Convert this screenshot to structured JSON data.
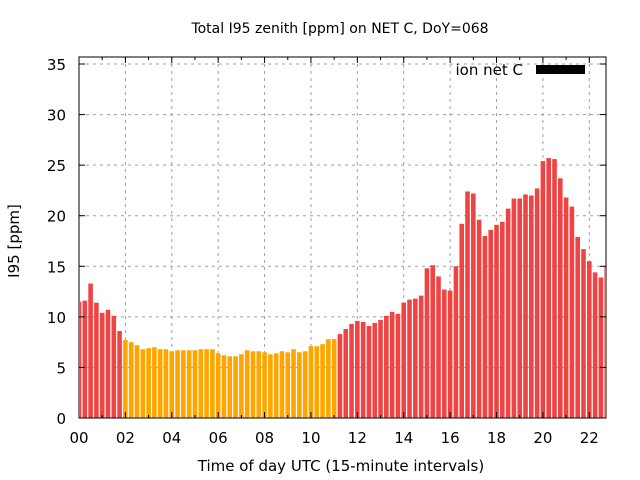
{
  "chart_data": {
    "type": "bar",
    "title": "Total I95 zenith [ppm] on NET C, DoY=068",
    "xlabel": "Time of day UTC (15-minute intervals)",
    "ylabel": "I95 [ppm]",
    "ylim": [
      0,
      36
    ],
    "yticks": [
      0,
      5,
      10,
      15,
      20,
      25,
      30,
      35
    ],
    "ytick_labels": [
      "0",
      "5",
      "10",
      "15",
      "20",
      "25",
      "30",
      "35"
    ],
    "xlim_hours": [
      0,
      22.75
    ],
    "xticks_hours": [
      0,
      2,
      4,
      6,
      8,
      10,
      12,
      14,
      16,
      18,
      20,
      22
    ],
    "xtick_labels": [
      "00",
      "02",
      "04",
      "06",
      "08",
      "10",
      "12",
      "14",
      "16",
      "18",
      "20",
      "22"
    ],
    "grid": true,
    "legend": {
      "label": "ion net C",
      "color": "#000000",
      "placement": "top-right"
    },
    "interval_hours": 0.25,
    "colors": {
      "default": "#ef4444",
      "highlight": "#ffa500"
    },
    "highlight_range_index": [
      8,
      44
    ],
    "values": [
      11.5,
      11.6,
      13.3,
      11.4,
      10.4,
      10.7,
      10.1,
      8.6,
      7.7,
      7.5,
      7.2,
      6.8,
      6.9,
      7.0,
      6.8,
      6.8,
      6.6,
      6.7,
      6.7,
      6.7,
      6.7,
      6.8,
      6.8,
      6.8,
      6.4,
      6.2,
      6.1,
      6.1,
      6.3,
      6.7,
      6.6,
      6.6,
      6.5,
      6.3,
      6.4,
      6.6,
      6.5,
      6.8,
      6.5,
      6.6,
      7.1,
      7.1,
      7.3,
      7.8,
      7.8,
      8.3,
      8.8,
      9.3,
      9.6,
      9.5,
      9.1,
      9.4,
      9.7,
      10.1,
      10.5,
      10.3,
      11.4,
      11.7,
      11.8,
      12.1,
      14.8,
      15.1,
      14.0,
      12.7,
      12.6,
      15.0,
      19.2,
      22.4,
      22.2,
      19.6,
      18.0,
      18.6,
      19.1,
      19.4,
      20.7,
      21.7,
      21.7,
      22.1,
      22.0,
      22.7,
      25.4,
      25.7,
      25.6,
      23.7,
      21.8,
      20.9,
      17.9,
      16.7,
      15.5,
      14.4,
      13.9,
      15.0
    ]
  }
}
